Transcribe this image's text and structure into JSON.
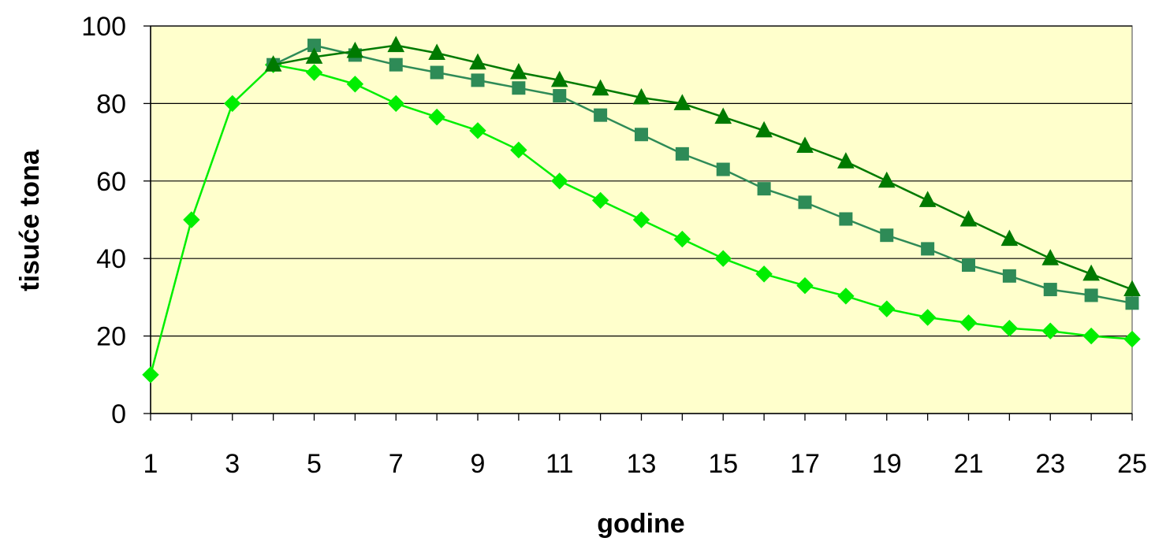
{
  "chart_data": {
    "type": "line",
    "title": "",
    "xlabel": "godine",
    "ylabel": "tisuće tona",
    "x": [
      1,
      2,
      3,
      4,
      5,
      6,
      7,
      8,
      9,
      10,
      11,
      12,
      13,
      14,
      15,
      16,
      17,
      18,
      19,
      20,
      21,
      22,
      23,
      24,
      25
    ],
    "x_tick_labels": [
      "1",
      "3",
      "5",
      "7",
      "9",
      "11",
      "13",
      "15",
      "17",
      "19",
      "21",
      "23",
      "25"
    ],
    "y_tick_labels": [
      "0",
      "20",
      "40",
      "60",
      "80",
      "100"
    ],
    "ylim": [
      0,
      100
    ],
    "xlim": [
      1,
      25
    ],
    "grid": true,
    "legend": "none",
    "plot_background": "#ffffcc",
    "series": [
      {
        "marker": "diamond",
        "color": "#00ee00",
        "values": [
          10,
          50,
          80,
          90,
          88,
          85,
          80,
          76.5,
          73,
          68,
          60,
          55,
          50,
          45,
          40,
          36,
          33,
          30.3,
          27,
          24.8,
          23.4,
          22,
          21.3,
          20,
          19.2
        ]
      },
      {
        "marker": "square",
        "color": "#2e8b57",
        "values": [
          null,
          null,
          null,
          90,
          95,
          92.5,
          90,
          88,
          86,
          84,
          82,
          77,
          72,
          67,
          63,
          58,
          54.5,
          50.2,
          46,
          42.5,
          38.3,
          35.5,
          32,
          30.5,
          28.5
        ]
      },
      {
        "marker": "triangle",
        "color": "#007a00",
        "values": [
          null,
          null,
          null,
          90,
          92,
          93.5,
          95,
          93,
          90.5,
          88,
          86,
          83.8,
          81.5,
          80,
          76.5,
          73,
          69,
          65,
          60,
          55,
          50,
          45,
          40,
          36,
          32
        ]
      }
    ]
  }
}
